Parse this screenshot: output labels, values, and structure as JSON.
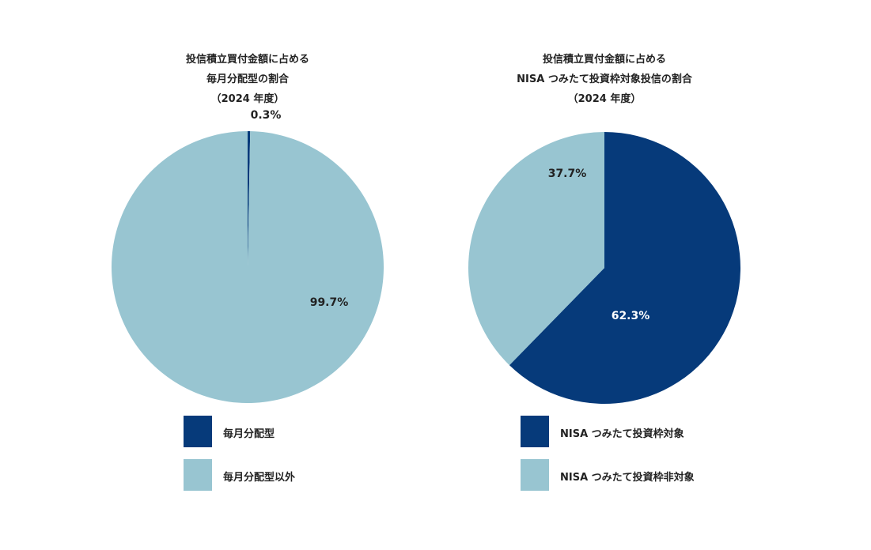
{
  "colors": {
    "dark": "#063A7A",
    "light": "#98C5D1",
    "text": "#222222"
  },
  "chart_data": [
    {
      "type": "pie",
      "title_lines": [
        "投信積立買付金額に占める",
        "毎月分配型の割合",
        "（2024 年度）"
      ],
      "slices": [
        {
          "name": "毎月分配型",
          "value": 0.3,
          "label": "0.3%",
          "color": "#063A7A"
        },
        {
          "name": "毎月分配型以外",
          "value": 99.7,
          "label": "99.7%",
          "color": "#98C5D1"
        }
      ],
      "legend": [
        "毎月分配型",
        "毎月分配型以外"
      ]
    },
    {
      "type": "pie",
      "title_lines": [
        "投信積立買付金額に占める",
        "NISA つみたて投資枠対象投信の割合",
        "（2024 年度）"
      ],
      "slices": [
        {
          "name": "NISA つみたて投資枠対象",
          "value": 62.3,
          "label": "62.3%",
          "color": "#063A7A"
        },
        {
          "name": "NISA つみたて投資枠非対象",
          "value": 37.7,
          "label": "37.7%",
          "color": "#98C5D1"
        }
      ],
      "legend": [
        "NISA つみたて投資枠対象",
        "NISA つみたて投資枠非対象"
      ]
    }
  ]
}
